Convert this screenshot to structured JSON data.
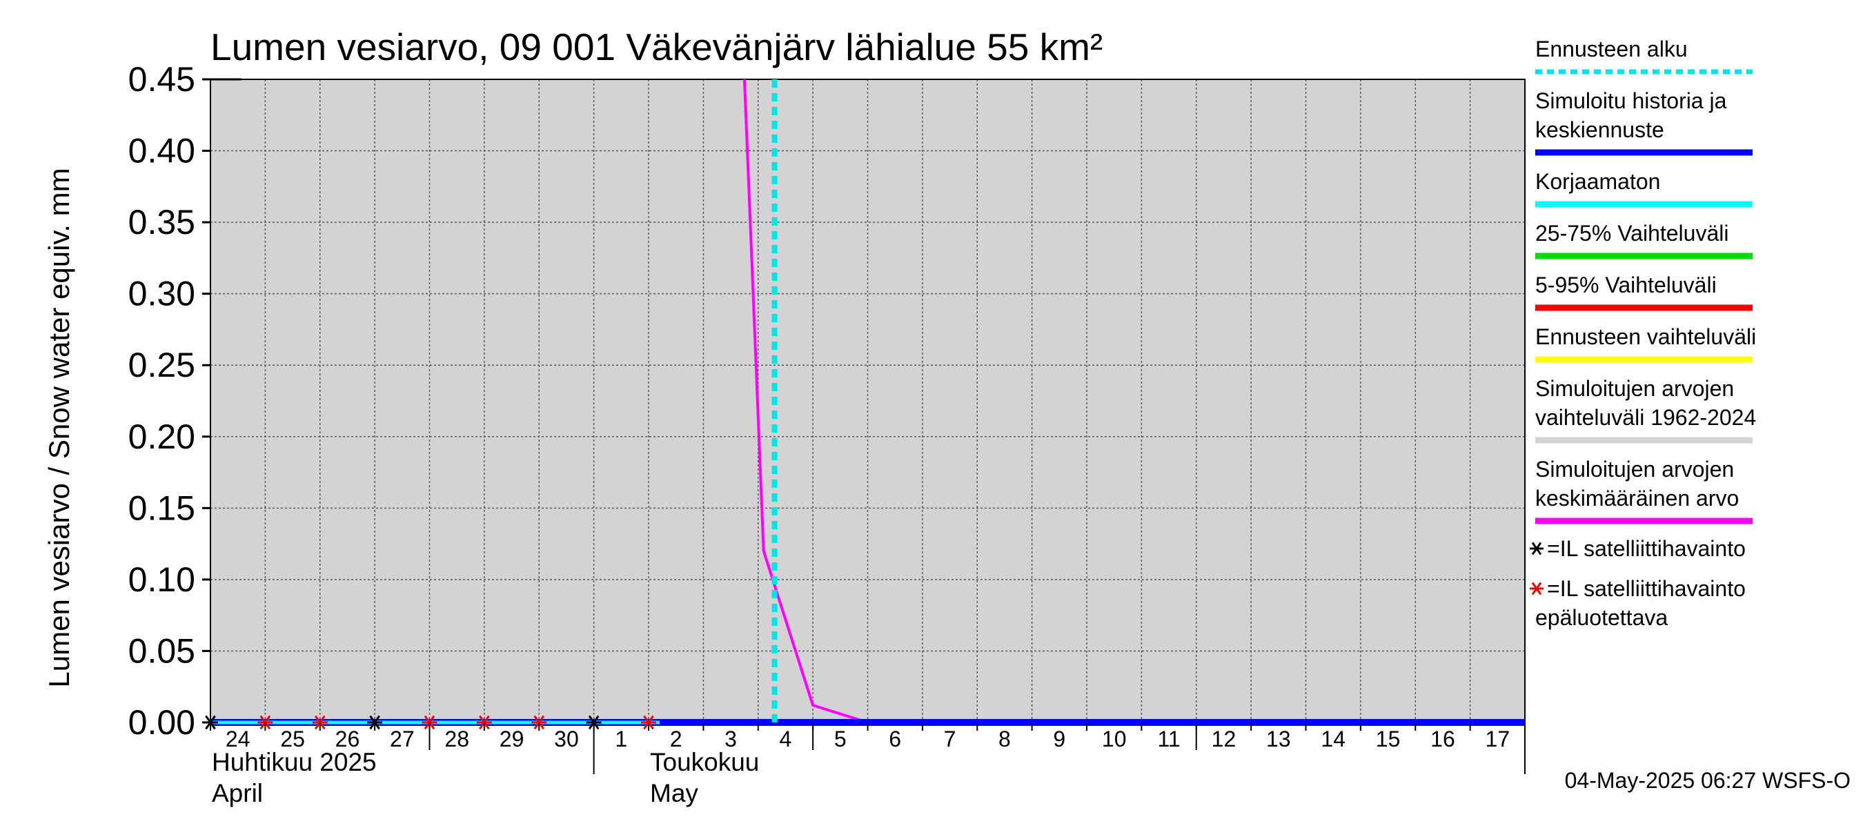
{
  "chart_data": {
    "type": "line",
    "title": "Lumen vesiarvo, 09 001 Väkevänjärv lähialue 55 km²",
    "ylabel": "Lumen vesiarvo / Snow water equiv.    mm",
    "ylim": [
      0,
      0.45
    ],
    "yticks": [
      "0.00",
      "0.05",
      "0.10",
      "0.15",
      "0.20",
      "0.25",
      "0.30",
      "0.35",
      "0.40",
      "0.45"
    ],
    "ytick_values": [
      0,
      0.05,
      0.1,
      0.15,
      0.2,
      0.25,
      0.3,
      0.35,
      0.4,
      0.45
    ],
    "xlim": [
      0,
      24
    ],
    "xtick_labels": [
      "24",
      "25",
      "26",
      "27",
      "28",
      "29",
      "30",
      "1",
      "2",
      "3",
      "4",
      "5",
      "6",
      "7",
      "8",
      "9",
      "10",
      "11",
      "12",
      "13",
      "14",
      "15",
      "16",
      "17"
    ],
    "month_labels": [
      {
        "line1": "Huhtikuu  2025",
        "line2": "April",
        "day": 0
      },
      {
        "line1": "Toukokuu",
        "line2": "May",
        "day": 8
      }
    ],
    "month_boundaries": [
      7,
      24
    ],
    "week_ticks": [
      4,
      11,
      18
    ],
    "forecast_start_day": 10.3,
    "series": [
      {
        "name": "Simuloitujen arvojen keskimääräinen arvo",
        "color": "#ff00ff",
        "points": [
          [
            9.75,
            0.45
          ],
          [
            10.1,
            0.12
          ],
          [
            11.0,
            0.012
          ],
          [
            12.0,
            0.0
          ],
          [
            24.0,
            0.0
          ]
        ]
      },
      {
        "name": "Simuloitu historia ja keskiennuste",
        "color": "#0000ff",
        "points": [
          [
            0.0,
            0.0
          ],
          [
            24.0,
            0.0
          ]
        ]
      },
      {
        "name": "Korjaamaton",
        "color": "#00ffff",
        "points": [
          [
            0.0,
            0.0
          ],
          [
            8.2,
            0.0
          ]
        ]
      }
    ],
    "satellite_obs": [
      {
        "day": 0,
        "value": 0.0,
        "reliable": true
      },
      {
        "day": 1,
        "value": 0.0,
        "reliable": false
      },
      {
        "day": 2,
        "value": 0.0,
        "reliable": false
      },
      {
        "day": 3,
        "value": 0.0,
        "reliable": true
      },
      {
        "day": 4,
        "value": 0.0,
        "reliable": false
      },
      {
        "day": 5,
        "value": 0.0,
        "reliable": false
      },
      {
        "day": 6,
        "value": 0.0,
        "reliable": false
      },
      {
        "day": 7,
        "value": 0.0,
        "reliable": true
      },
      {
        "day": 8,
        "value": 0.0,
        "reliable": false
      }
    ]
  },
  "legend": [
    {
      "lines": [
        "Ennusteen alku"
      ],
      "color": "#00e5e5",
      "style": "dotted"
    },
    {
      "lines": [
        "Simuloitu historia ja",
        "keskiennuste"
      ],
      "color": "#0000ff",
      "style": "solid"
    },
    {
      "lines": [
        "Korjaamaton"
      ],
      "color": "#00ffff",
      "style": "solid"
    },
    {
      "lines": [
        "25-75% Vaihteluväli"
      ],
      "color": "#00dd00",
      "style": "solid"
    },
    {
      "lines": [
        "5-95% Vaihteluväli"
      ],
      "color": "#ff0000",
      "style": "solid"
    },
    {
      "lines": [
        "Ennusteen vaihteluväli"
      ],
      "color": "#ffff00",
      "style": "solid"
    },
    {
      "lines": [
        "Simuloitujen arvojen",
        "vaihteluväli 1962-2024"
      ],
      "color": "#d3d3d3",
      "style": "solid"
    },
    {
      "lines": [
        "Simuloitujen arvojen",
        "keskimääräinen arvo"
      ],
      "color": "#ff00ff",
      "style": "solid"
    }
  ],
  "marker_legend": [
    {
      "lines": [
        "=IL satelliittihavainto"
      ],
      "color": "#000000"
    },
    {
      "lines": [
        "=IL satelliittihavainto",
        "epäluotettava"
      ],
      "color": "#ff0000"
    }
  ],
  "footer": "04-May-2025 06:27 WSFS-O"
}
